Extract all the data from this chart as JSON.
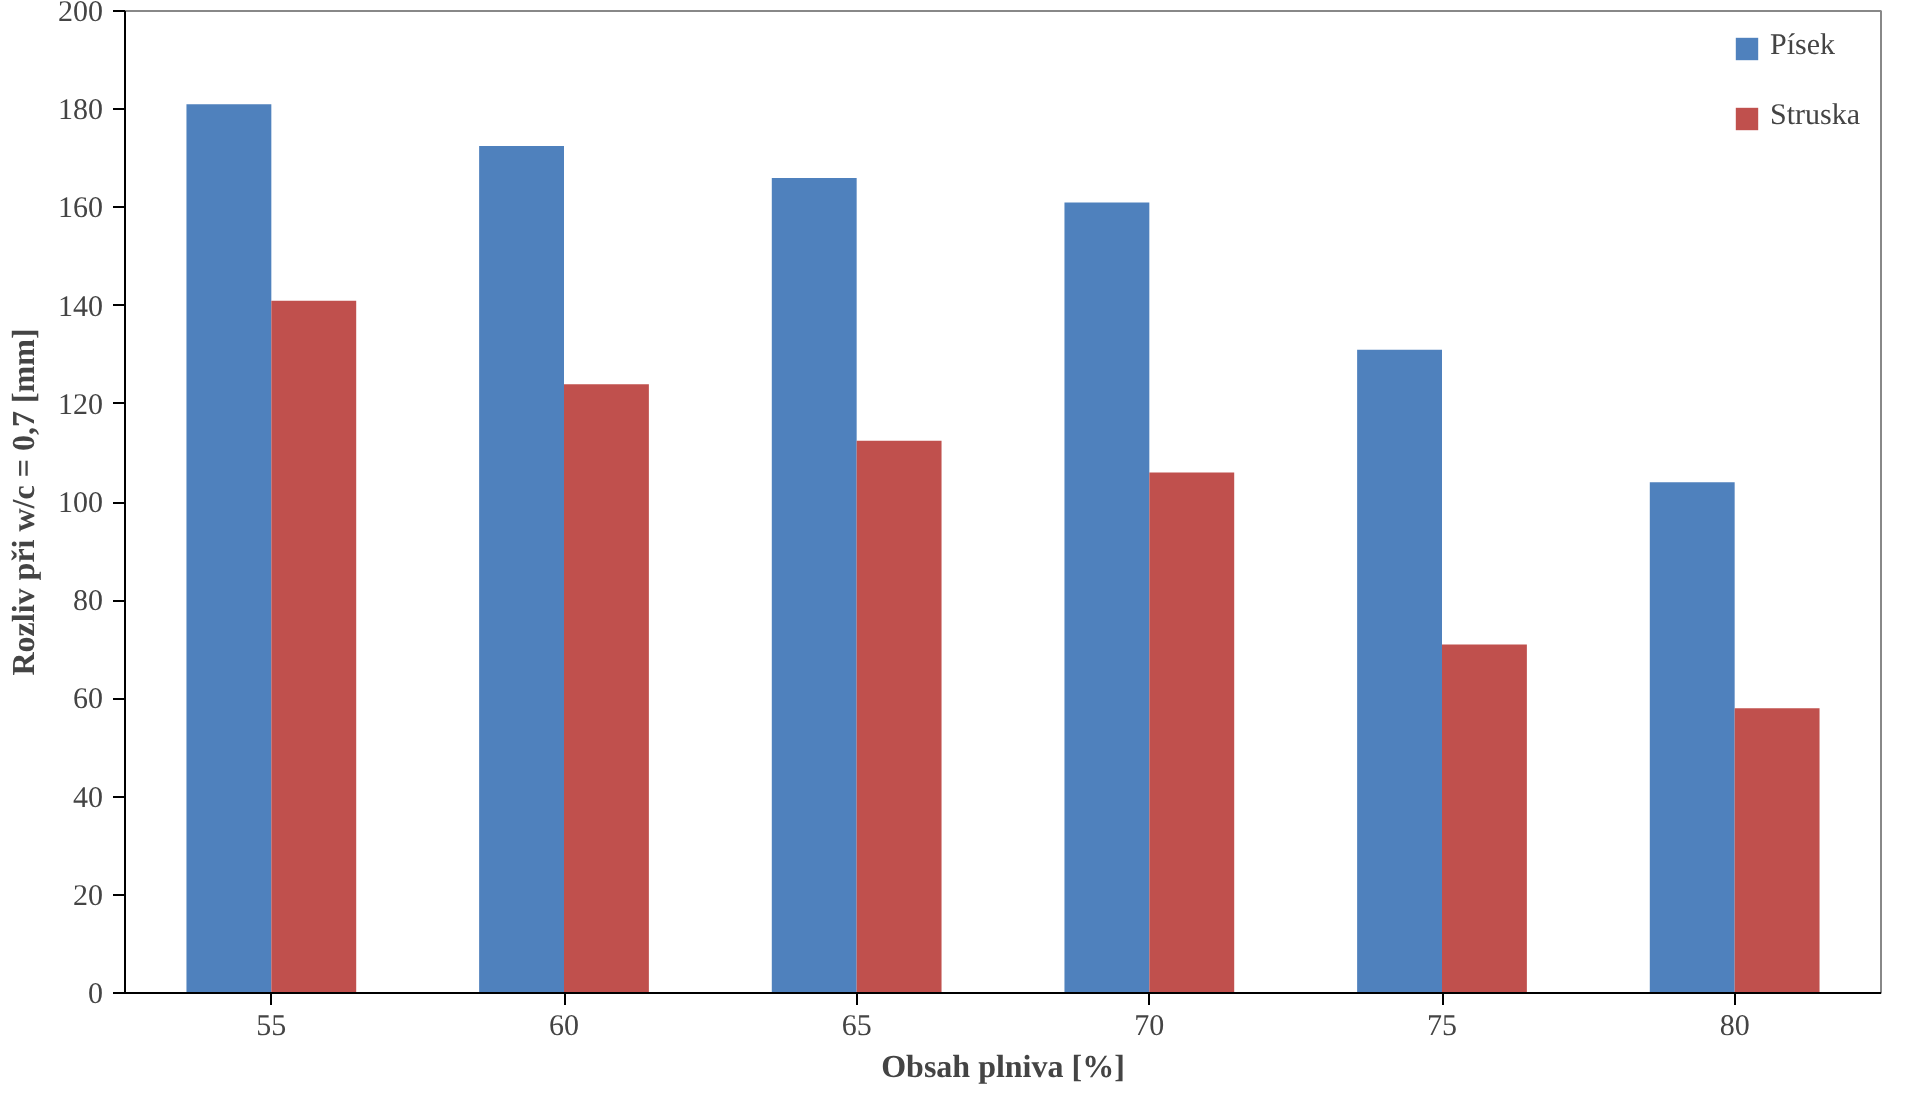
{
  "chart_data": {
    "type": "bar",
    "xlabel": "Obsah plniva [%]",
    "ylabel": "Rozliv při w/c = 0,7 [mm]",
    "categories": [
      "55",
      "60",
      "65",
      "70",
      "75",
      "80"
    ],
    "series": [
      {
        "name": "Písek",
        "color": "#4f81bd",
        "values": [
          181,
          172.5,
          166,
          161,
          131,
          104
        ]
      },
      {
        "name": "Struska",
        "color": "#c0504d",
        "values": [
          141,
          124,
          112.5,
          106,
          71,
          58
        ]
      }
    ],
    "ylim": [
      0,
      200
    ],
    "yticks": [
      0,
      20,
      40,
      60,
      80,
      100,
      120,
      140,
      160,
      180,
      200
    ],
    "grid": false,
    "legend": "top right"
  }
}
